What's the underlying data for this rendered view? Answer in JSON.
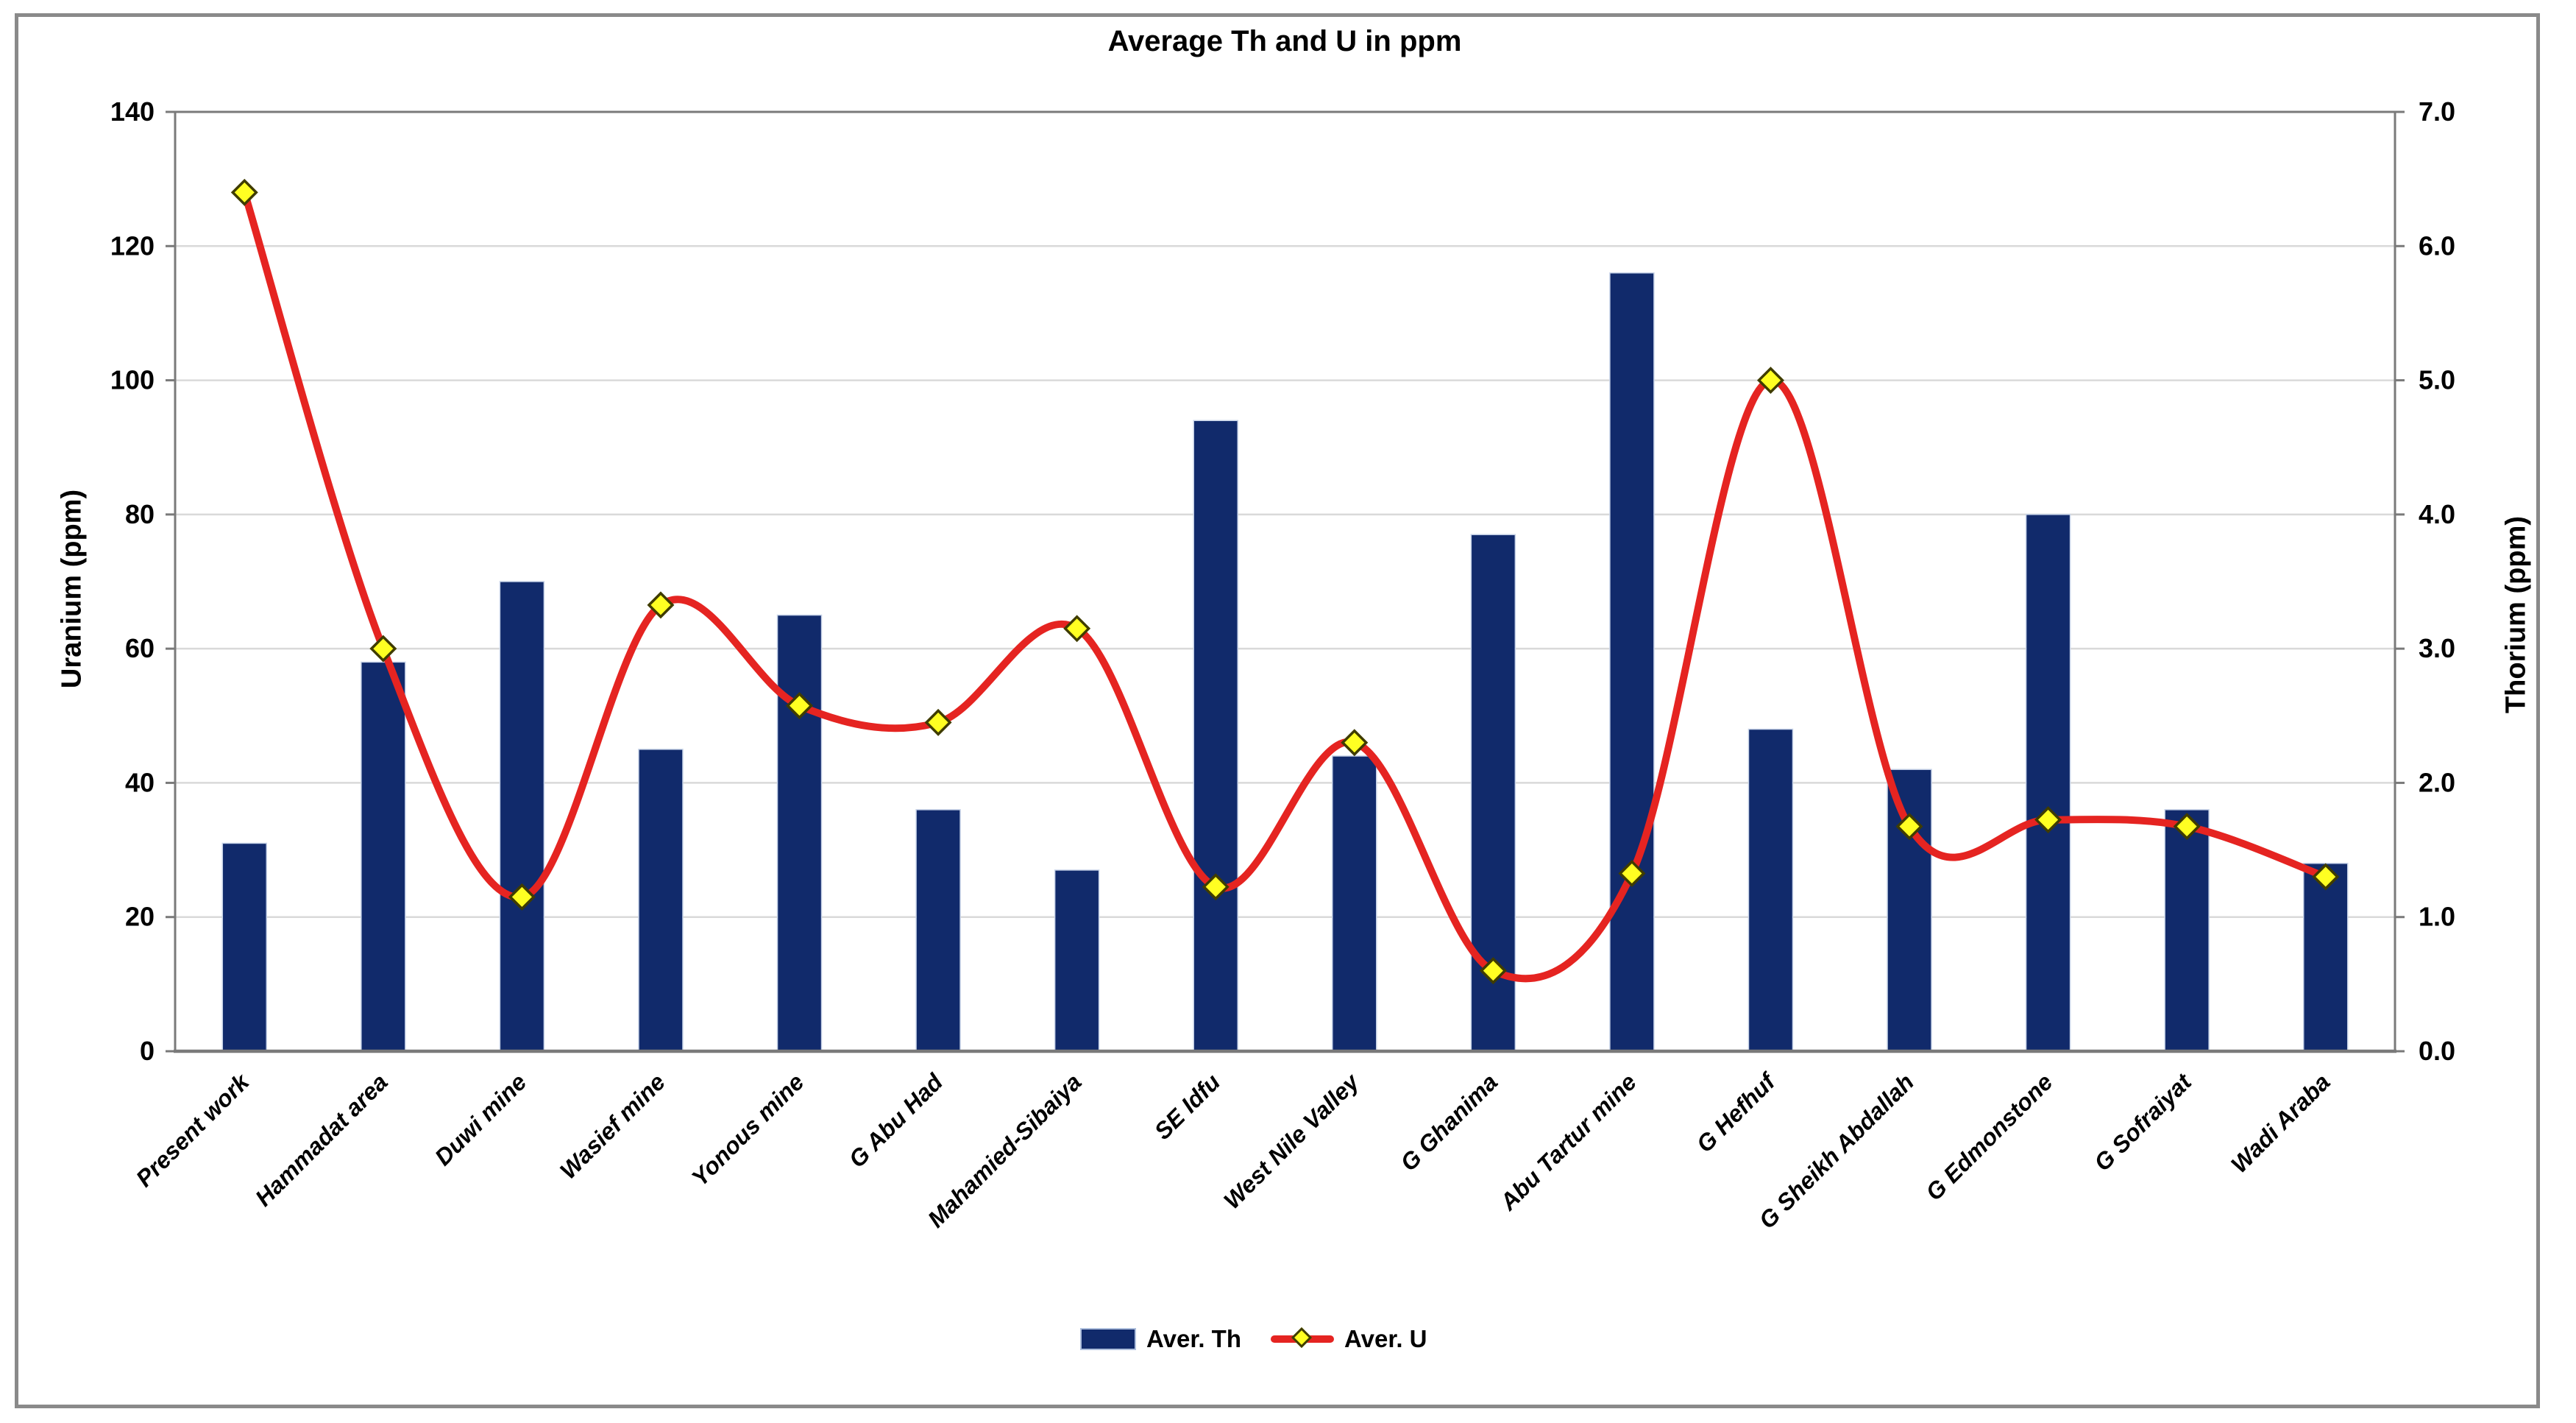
{
  "chart_data": {
    "type": "bar+line",
    "title": "Average Th and U in ppm",
    "categories": [
      "Present work",
      "Hammadat area",
      "Duwi mine",
      "Wasief mine",
      "Yonous mine",
      "G Abu Had",
      "Mahamied-Sibaiya",
      "SE Idfu",
      "West Nile Valley",
      "G Ghanima",
      "Abu Tartur mine",
      "G Hefhuf",
      "G Sheikh Abdallah",
      "G Edmonstone",
      "G Sofraiyat",
      "Wadi Araba"
    ],
    "series": [
      {
        "name": "Aver. Th",
        "type": "bar",
        "axis": "right",
        "unit": "ppm",
        "values": [
          1.55,
          2.9,
          3.5,
          2.25,
          3.25,
          1.8,
          1.35,
          4.7,
          2.2,
          3.85,
          5.8,
          2.4,
          2.1,
          4.0,
          1.8,
          1.4
        ]
      },
      {
        "name": "Aver. U",
        "type": "line",
        "axis": "left",
        "unit": "ppm",
        "values": [
          128,
          60,
          23,
          66.5,
          51.5,
          49,
          63,
          24.5,
          46,
          12,
          26.5,
          100,
          33.5,
          34.5,
          33.5,
          26
        ]
      }
    ],
    "left_axis": {
      "label": "Uranium (ppm)",
      "min": 0,
      "max": 140,
      "step": 20,
      "ticks": [
        "0",
        "20",
        "40",
        "60",
        "80",
        "100",
        "120",
        "140"
      ]
    },
    "right_axis": {
      "label": "Thorium (ppm)",
      "min": 0,
      "max": 7,
      "step": 1,
      "ticks": [
        "0.0",
        "1.0",
        "2.0",
        "3.0",
        "4.0",
        "5.0",
        "6.0",
        "7.0"
      ]
    },
    "grid": true,
    "legend_position": "bottom",
    "colors": {
      "bar": "#112a6b",
      "bar_edge": "#c7d3e8",
      "line": "#e52421",
      "marker_fill": "#ffff22",
      "marker_stroke": "#3f3c00",
      "grid": "#d9d9d9",
      "axis": "#7a7a7a",
      "frame": "#8a8a8a",
      "text": "#000000"
    }
  }
}
